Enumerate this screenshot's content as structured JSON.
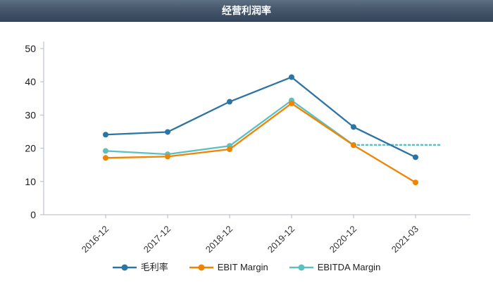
{
  "header": {
    "title": "经营利润率"
  },
  "chart_data": {
    "type": "line",
    "categories": [
      "2016-12",
      "2017-12",
      "2018-12",
      "2019-12",
      "2020-12",
      "2021-03"
    ],
    "series": [
      {
        "name": "毛利率",
        "color": "#2d74a3",
        "values": [
          24.1,
          24.9,
          34.0,
          41.4,
          26.4,
          17.3
        ]
      },
      {
        "name": "EBIT Margin",
        "color": "#f08300",
        "values": [
          17.1,
          17.5,
          19.7,
          33.5,
          20.9,
          9.7
        ]
      },
      {
        "name": "EBITDA Margin",
        "color": "#5cc0c0",
        "values": [
          19.2,
          18.2,
          20.7,
          34.4,
          21.0,
          null
        ],
        "dashed_tail": {
          "from_index": 4,
          "to_index": 5,
          "value": 21.0,
          "style": "dotted"
        }
      }
    ],
    "title": "经营利润率",
    "xlabel": "",
    "ylabel": "",
    "ylim": [
      0,
      50
    ],
    "yticks": [
      0,
      10,
      20,
      30,
      40,
      50
    ],
    "grid": false,
    "legend_position": "bottom"
  }
}
